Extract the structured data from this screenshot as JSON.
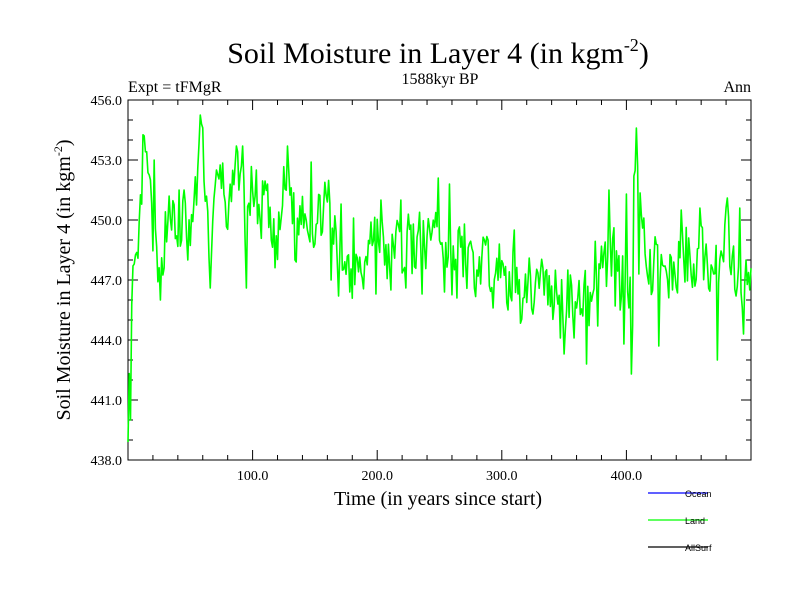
{
  "chart_data": {
    "type": "line",
    "title": "Soil Moisture in Layer 4 (in kgm",
    "title_sup": "-2",
    "title_tail": ")",
    "subtitle_left": "Expt = tFMgR",
    "subtitle_center": "1588kyr BP",
    "subtitle_right": "Ann",
    "xlabel": "Time (in years since start)",
    "ylabel": "Soil Moisture in Layer 4 (in kgm",
    "ylabel_sup": "-2",
    "ylabel_tail": ")",
    "xlim": [
      0,
      500
    ],
    "ylim": [
      438,
      456
    ],
    "x_ticks": [
      100,
      200,
      300,
      400
    ],
    "x_tick_labels": [
      "100.0",
      "200.0",
      "300.0",
      "400.0"
    ],
    "y_ticks": [
      438,
      441,
      444,
      447,
      450,
      453,
      456
    ],
    "y_tick_labels": [
      "438.0",
      "441.0",
      "444.0",
      "447.0",
      "450.0",
      "453.0",
      "456.0"
    ],
    "legend": [
      {
        "name": "Ocean",
        "color": "#0000ff"
      },
      {
        "name": "Land",
        "color": "#00ff00"
      },
      {
        "name": "AllSurf",
        "color": "#000000"
      }
    ],
    "series": [
      {
        "name": "Land",
        "color": "#00ff00",
        "anchors": [
          [
            0,
            440.2
          ],
          [
            4,
            446.5
          ],
          [
            8,
            447.8
          ],
          [
            12,
            453.0
          ],
          [
            16,
            452.5
          ],
          [
            20,
            449.5
          ],
          [
            25,
            446.5
          ],
          [
            30,
            449.5
          ],
          [
            35,
            450.5
          ],
          [
            40,
            448.5
          ],
          [
            45,
            450.5
          ],
          [
            50,
            449.0
          ],
          [
            55,
            451.5
          ],
          [
            58,
            454.8
          ],
          [
            62,
            452.0
          ],
          [
            66,
            448.0
          ],
          [
            70,
            451.0
          ],
          [
            75,
            452.5
          ],
          [
            80,
            450.0
          ],
          [
            85,
            451.5
          ],
          [
            90,
            453.0
          ],
          [
            95,
            449.5
          ],
          [
            100,
            452.0
          ],
          [
            105,
            449.5
          ],
          [
            110,
            451.5
          ],
          [
            115,
            449.0
          ],
          [
            120,
            448.5
          ],
          [
            125,
            451.5
          ],
          [
            130,
            452.0
          ],
          [
            135,
            449.0
          ],
          [
            140,
            451.0
          ],
          [
            145,
            450.0
          ],
          [
            150,
            449.5
          ],
          [
            155,
            450.5
          ],
          [
            160,
            451.0
          ],
          [
            165,
            449.5
          ],
          [
            170,
            447.5
          ],
          [
            175,
            448.5
          ],
          [
            180,
            447.0
          ],
          [
            185,
            448.5
          ],
          [
            190,
            447.5
          ],
          [
            195,
            449.0
          ],
          [
            200,
            450.0
          ],
          [
            205,
            448.5
          ],
          [
            210,
            447.5
          ],
          [
            215,
            449.5
          ],
          [
            220,
            448.0
          ],
          [
            225,
            449.5
          ],
          [
            230,
            448.0
          ],
          [
            235,
            449.5
          ],
          [
            240,
            448.5
          ],
          [
            245,
            450.0
          ],
          [
            250,
            449.5
          ],
          [
            255,
            448.5
          ],
          [
            260,
            447.5
          ],
          [
            265,
            449.0
          ],
          [
            270,
            447.5
          ],
          [
            275,
            448.0
          ],
          [
            280,
            447.0
          ],
          [
            285,
            448.5
          ],
          [
            290,
            447.5
          ],
          [
            295,
            448.5
          ],
          [
            300,
            447.0
          ],
          [
            305,
            446.5
          ],
          [
            310,
            447.5
          ],
          [
            315,
            446.0
          ],
          [
            320,
            447.0
          ],
          [
            325,
            446.5
          ],
          [
            330,
            447.5
          ],
          [
            335,
            447.0
          ],
          [
            340,
            446.0
          ],
          [
            345,
            447.0
          ],
          [
            350,
            445.5
          ],
          [
            355,
            446.5
          ],
          [
            360,
            445.0
          ],
          [
            365,
            447.0
          ],
          [
            370,
            445.5
          ],
          [
            375,
            448.0
          ],
          [
            380,
            448.5
          ],
          [
            385,
            447.5
          ],
          [
            390,
            449.0
          ],
          [
            395,
            447.0
          ],
          [
            400,
            448.0
          ],
          [
            405,
            446.0
          ],
          [
            408,
            454.5
          ],
          [
            412,
            449.5
          ],
          [
            416,
            448.0
          ],
          [
            420,
            447.0
          ],
          [
            425,
            448.5
          ],
          [
            430,
            446.5
          ],
          [
            435,
            447.5
          ],
          [
            440,
            447.0
          ],
          [
            445,
            449.0
          ],
          [
            450,
            448.0
          ],
          [
            455,
            447.5
          ],
          [
            460,
            449.0
          ],
          [
            465,
            447.0
          ],
          [
            470,
            448.5
          ],
          [
            475,
            447.5
          ],
          [
            480,
            450.0
          ],
          [
            485,
            448.0
          ],
          [
            490,
            447.5
          ],
          [
            495,
            446.5
          ],
          [
            500,
            446.5
          ]
        ],
        "spikes": [
          [
            2,
            440.0
          ],
          [
            5,
            447.8
          ],
          [
            13,
            454.2
          ],
          [
            21,
            453.0
          ],
          [
            26,
            446.0
          ],
          [
            33,
            451.2
          ],
          [
            41,
            451.5
          ],
          [
            48,
            448.0
          ],
          [
            53,
            451.0
          ],
          [
            59,
            454.8
          ],
          [
            66,
            446.6
          ],
          [
            71,
            452.5
          ],
          [
            81,
            450.9
          ],
          [
            87,
            453.7
          ],
          [
            92,
            453.7
          ],
          [
            95,
            446.6
          ],
          [
            103,
            452.5
          ],
          [
            128,
            453.7
          ],
          [
            134,
            448.0
          ],
          [
            147,
            452.9
          ],
          [
            150,
            448.8
          ],
          [
            160,
            450.9
          ],
          [
            163,
            447.0
          ],
          [
            169,
            446.2
          ],
          [
            171,
            450.8
          ],
          [
            178,
            446.4
          ],
          [
            181,
            450.1
          ],
          [
            190,
            447.9
          ],
          [
            199,
            446.3
          ],
          [
            203,
            451.0
          ],
          [
            211,
            446.5
          ],
          [
            219,
            451.0
          ],
          [
            223,
            446.6
          ],
          [
            229,
            449.8
          ],
          [
            236,
            446.3
          ],
          [
            249,
            452.1
          ],
          [
            254,
            446.4
          ],
          [
            258,
            451.8
          ],
          [
            264,
            446.1
          ],
          [
            270,
            449.8
          ],
          [
            278,
            446.6
          ],
          [
            286,
            449.0
          ],
          [
            293,
            445.6
          ],
          [
            298,
            448.8
          ],
          [
            305,
            445.5
          ],
          [
            310,
            449.5
          ],
          [
            313,
            446.3
          ],
          [
            319,
            447.3
          ],
          [
            325,
            445.3
          ],
          [
            333,
            447.6
          ],
          [
            342,
            445.7
          ],
          [
            347,
            444.1
          ],
          [
            350,
            443.3
          ],
          [
            353,
            447.5
          ],
          [
            358,
            444.1
          ],
          [
            360,
            445.6
          ],
          [
            365,
            445.2
          ],
          [
            368,
            442.8
          ],
          [
            373,
            446.3
          ],
          [
            377,
            444.7
          ],
          [
            383,
            448.9
          ],
          [
            386,
            451.5
          ],
          [
            391,
            445.7
          ],
          [
            395,
            445.5
          ],
          [
            398,
            443.8
          ],
          [
            400,
            451.3
          ],
          [
            402,
            445.6
          ],
          [
            404,
            442.3
          ],
          [
            406,
            452.2
          ],
          [
            408,
            454.6
          ],
          [
            410,
            447.3
          ],
          [
            414,
            450.1
          ],
          [
            418,
            446.8
          ],
          [
            422,
            447.9
          ],
          [
            426,
            443.7
          ],
          [
            431,
            447.7
          ],
          [
            438,
            447.9
          ],
          [
            444,
            450.5
          ],
          [
            447,
            446.9
          ],
          [
            454,
            447.8
          ],
          [
            459,
            450.6
          ],
          [
            464,
            448.8
          ],
          [
            469,
            447.6
          ],
          [
            473,
            443.0
          ],
          [
            477,
            448.2
          ],
          [
            481,
            451.1
          ],
          [
            485,
            448.2
          ],
          [
            488,
            446.2
          ],
          [
            491,
            450.6
          ],
          [
            494,
            444.3
          ],
          [
            496,
            448.0
          ],
          [
            499,
            446.5
          ]
        ]
      }
    ]
  }
}
